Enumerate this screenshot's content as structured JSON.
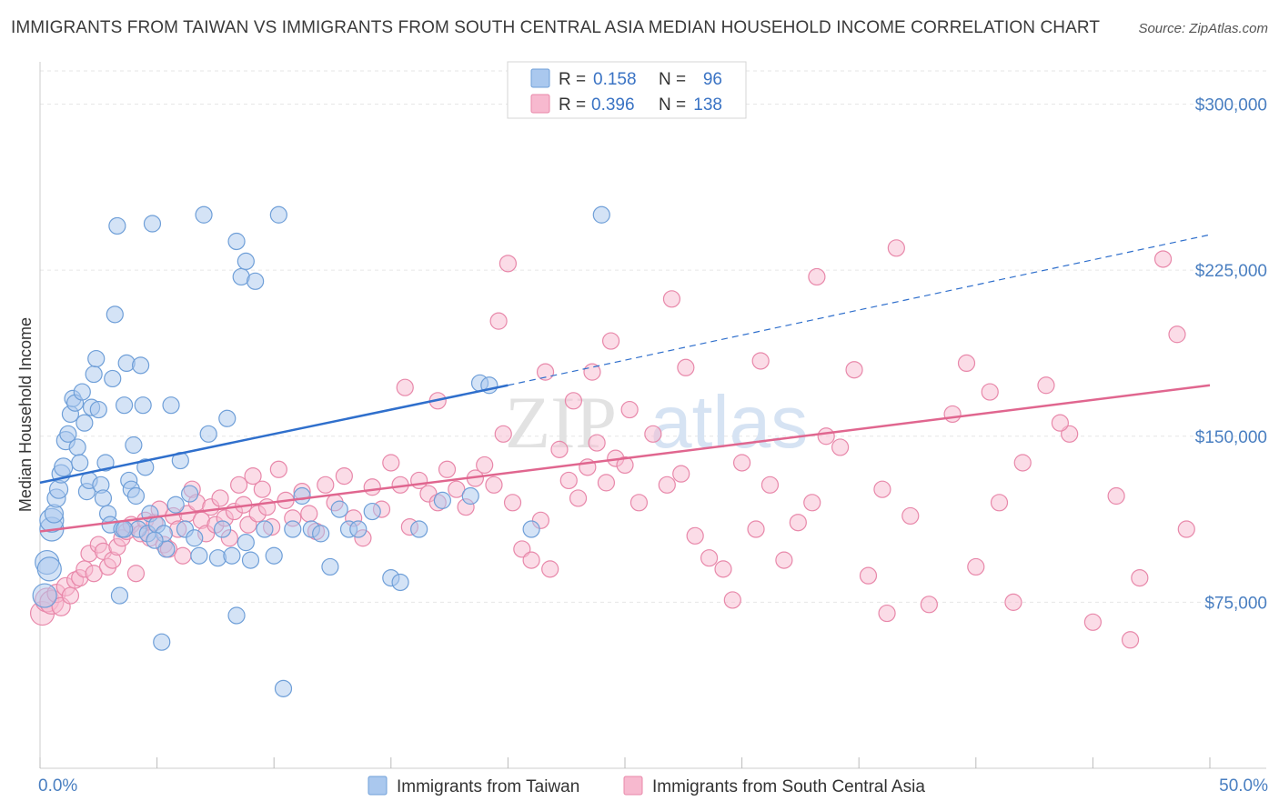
{
  "title": "IMMIGRANTS FROM TAIWAN VS IMMIGRANTS FROM SOUTH CENTRAL ASIA MEDIAN HOUSEHOLD INCOME CORRELATION CHART",
  "source": "Source: ZipAtlas.com",
  "watermark": {
    "zip": "ZIP",
    "atlas": "atlas"
  },
  "colors": {
    "taiwan_fill": "#aac8ee",
    "taiwan_stroke": "#6f9fd8",
    "taiwan_line": "#2f6fcc",
    "sca_fill": "#f7b9cf",
    "sca_stroke": "#e888aa",
    "sca_line": "#e0668f",
    "grid": "#e6e6e6",
    "tick": "#4a7fc1"
  },
  "legend": {
    "rows": [
      {
        "r_label": "R =",
        "r_value": "0.158",
        "n_label": "N =",
        "n_value": "96"
      },
      {
        "r_label": "R =",
        "r_value": "0.396",
        "n_label": "N =",
        "n_value": "138"
      }
    ]
  },
  "chart_data": {
    "type": "scatter",
    "title": "IMMIGRANTS FROM TAIWAN VS IMMIGRANTS FROM SOUTH CENTRAL ASIA MEDIAN HOUSEHOLD INCOME CORRELATION CHART",
    "xlabel": "",
    "ylabel": "Median Household Income",
    "xlim": [
      0,
      50
    ],
    "ylim": [
      0,
      315000
    ],
    "x_tick_labels": [
      "0.0%",
      "50.0%"
    ],
    "y_ticks": [
      75000,
      150000,
      225000,
      300000
    ],
    "y_tick_labels": [
      "$75,000",
      "$150,000",
      "$225,000",
      "$300,000"
    ],
    "grid": true,
    "legend_position": "bottom",
    "series": [
      {
        "name": "Immigrants from Taiwan",
        "R": 0.158,
        "N": 96,
        "trend": {
          "x": [
            0,
            20
          ],
          "y": [
            129000,
            173000
          ],
          "extend_to_x": 50,
          "extend_to_y": 241000
        },
        "points": [
          [
            0.2,
            78000
          ],
          [
            0.3,
            93000
          ],
          [
            0.4,
            90000
          ],
          [
            0.5,
            108000
          ],
          [
            0.5,
            112000
          ],
          [
            0.6,
            115000
          ],
          [
            0.7,
            122000
          ],
          [
            0.8,
            126000
          ],
          [
            0.9,
            133000
          ],
          [
            1.0,
            136000
          ],
          [
            1.1,
            148000
          ],
          [
            1.2,
            151000
          ],
          [
            1.3,
            160000
          ],
          [
            1.4,
            167000
          ],
          [
            1.5,
            165000
          ],
          [
            1.6,
            145000
          ],
          [
            1.7,
            138000
          ],
          [
            1.8,
            170000
          ],
          [
            1.9,
            156000
          ],
          [
            2.0,
            125000
          ],
          [
            2.1,
            130000
          ],
          [
            2.2,
            163000
          ],
          [
            2.3,
            178000
          ],
          [
            2.4,
            185000
          ],
          [
            2.5,
            162000
          ],
          [
            2.6,
            128000
          ],
          [
            2.7,
            122000
          ],
          [
            2.8,
            138000
          ],
          [
            2.9,
            115000
          ],
          [
            3.0,
            110000
          ],
          [
            3.1,
            176000
          ],
          [
            3.2,
            205000
          ],
          [
            3.3,
            245000
          ],
          [
            3.4,
            78000
          ],
          [
            3.5,
            108000
          ],
          [
            3.6,
            164000
          ],
          [
            3.7,
            183000
          ],
          [
            3.8,
            130000
          ],
          [
            3.9,
            126000
          ],
          [
            4.0,
            146000
          ],
          [
            4.1,
            123000
          ],
          [
            4.2,
            108000
          ],
          [
            4.3,
            182000
          ],
          [
            4.4,
            164000
          ],
          [
            4.5,
            136000
          ],
          [
            4.6,
            106000
          ],
          [
            4.7,
            115000
          ],
          [
            4.8,
            246000
          ],
          [
            5.0,
            110000
          ],
          [
            5.2,
            57000
          ],
          [
            5.4,
            99000
          ],
          [
            5.6,
            164000
          ],
          [
            5.8,
            119000
          ],
          [
            6.0,
            139000
          ],
          [
            6.2,
            108000
          ],
          [
            6.4,
            124000
          ],
          [
            6.6,
            104000
          ],
          [
            7.0,
            250000
          ],
          [
            7.2,
            151000
          ],
          [
            7.6,
            95000
          ],
          [
            7.8,
            108000
          ],
          [
            8.0,
            158000
          ],
          [
            8.2,
            96000
          ],
          [
            8.4,
            238000
          ],
          [
            8.6,
            222000
          ],
          [
            8.8,
            229000
          ],
          [
            8.4,
            69000
          ],
          [
            8.8,
            102000
          ],
          [
            9.0,
            94000
          ],
          [
            9.2,
            220000
          ],
          [
            9.6,
            108000
          ],
          [
            10.0,
            96000
          ],
          [
            10.2,
            250000
          ],
          [
            10.4,
            36000
          ],
          [
            10.8,
            108000
          ],
          [
            11.2,
            123000
          ],
          [
            11.6,
            108000
          ],
          [
            12.0,
            106000
          ],
          [
            12.4,
            91000
          ],
          [
            12.8,
            117000
          ],
          [
            13.2,
            108000
          ],
          [
            14.2,
            116000
          ],
          [
            15.0,
            86000
          ],
          [
            15.4,
            84000
          ],
          [
            16.2,
            108000
          ],
          [
            18.4,
            123000
          ],
          [
            18.8,
            174000
          ],
          [
            19.2,
            173000
          ],
          [
            17.2,
            121000
          ],
          [
            21.0,
            108000
          ],
          [
            13.6,
            108000
          ],
          [
            24.0,
            250000
          ],
          [
            6.8,
            96000
          ],
          [
            5.3,
            106000
          ],
          [
            4.9,
            103000
          ],
          [
            3.6,
            108000
          ]
        ]
      },
      {
        "name": "Immigrants from South Central Asia",
        "R": 0.396,
        "N": 138,
        "trend": {
          "x": [
            0,
            50
          ],
          "y": [
            107000,
            173000
          ]
        },
        "points": [
          [
            0.1,
            70000
          ],
          [
            0.3,
            76000
          ],
          [
            0.5,
            75000
          ],
          [
            0.7,
            79000
          ],
          [
            0.9,
            73000
          ],
          [
            1.1,
            82000
          ],
          [
            1.3,
            78000
          ],
          [
            1.5,
            85000
          ],
          [
            1.7,
            86000
          ],
          [
            1.9,
            90000
          ],
          [
            2.1,
            97000
          ],
          [
            2.3,
            88000
          ],
          [
            2.5,
            101000
          ],
          [
            2.7,
            98000
          ],
          [
            2.9,
            91000
          ],
          [
            3.1,
            94000
          ],
          [
            3.3,
            100000
          ],
          [
            3.5,
            104000
          ],
          [
            3.7,
            107000
          ],
          [
            3.9,
            110000
          ],
          [
            4.1,
            88000
          ],
          [
            4.3,
            106000
          ],
          [
            4.5,
            112000
          ],
          [
            4.7,
            104000
          ],
          [
            4.9,
            111000
          ],
          [
            5.1,
            117000
          ],
          [
            5.3,
            101000
          ],
          [
            5.5,
            99000
          ],
          [
            5.7,
            114000
          ],
          [
            5.9,
            108000
          ],
          [
            6.1,
            96000
          ],
          [
            6.3,
            115000
          ],
          [
            6.5,
            126000
          ],
          [
            6.7,
            120000
          ],
          [
            6.9,
            112000
          ],
          [
            7.1,
            106000
          ],
          [
            7.3,
            118000
          ],
          [
            7.5,
            110000
          ],
          [
            7.7,
            122000
          ],
          [
            7.9,
            113000
          ],
          [
            8.1,
            104000
          ],
          [
            8.3,
            116000
          ],
          [
            8.5,
            128000
          ],
          [
            8.7,
            119000
          ],
          [
            8.9,
            110000
          ],
          [
            9.1,
            132000
          ],
          [
            9.3,
            115000
          ],
          [
            9.5,
            126000
          ],
          [
            9.7,
            118000
          ],
          [
            9.9,
            109000
          ],
          [
            10.2,
            135000
          ],
          [
            10.5,
            121000
          ],
          [
            10.8,
            113000
          ],
          [
            11.2,
            125000
          ],
          [
            11.5,
            115000
          ],
          [
            11.8,
            107000
          ],
          [
            12.2,
            128000
          ],
          [
            12.6,
            120000
          ],
          [
            13.0,
            132000
          ],
          [
            13.4,
            113000
          ],
          [
            13.8,
            104000
          ],
          [
            14.2,
            127000
          ],
          [
            14.6,
            117000
          ],
          [
            15.0,
            138000
          ],
          [
            15.4,
            128000
          ],
          [
            15.8,
            109000
          ],
          [
            16.2,
            130000
          ],
          [
            16.6,
            124000
          ],
          [
            17.0,
            120000
          ],
          [
            17.4,
            135000
          ],
          [
            17.8,
            126000
          ],
          [
            18.2,
            118000
          ],
          [
            18.6,
            131000
          ],
          [
            19.0,
            137000
          ],
          [
            19.4,
            128000
          ],
          [
            19.8,
            151000
          ],
          [
            20.2,
            120000
          ],
          [
            20.6,
            99000
          ],
          [
            21.0,
            94000
          ],
          [
            21.4,
            112000
          ],
          [
            21.8,
            90000
          ],
          [
            22.2,
            144000
          ],
          [
            22.6,
            130000
          ],
          [
            23.0,
            122000
          ],
          [
            23.4,
            136000
          ],
          [
            23.8,
            147000
          ],
          [
            24.2,
            129000
          ],
          [
            24.6,
            140000
          ],
          [
            25.0,
            137000
          ],
          [
            25.6,
            120000
          ],
          [
            26.2,
            151000
          ],
          [
            26.8,
            128000
          ],
          [
            27.4,
            133000
          ],
          [
            28.0,
            105000
          ],
          [
            28.6,
            95000
          ],
          [
            29.2,
            90000
          ],
          [
            29.6,
            76000
          ],
          [
            30.0,
            138000
          ],
          [
            30.6,
            108000
          ],
          [
            31.2,
            128000
          ],
          [
            31.8,
            94000
          ],
          [
            32.4,
            111000
          ],
          [
            33.0,
            120000
          ],
          [
            33.6,
            150000
          ],
          [
            34.2,
            145000
          ],
          [
            34.8,
            180000
          ],
          [
            35.4,
            87000
          ],
          [
            36.0,
            126000
          ],
          [
            36.6,
            235000
          ],
          [
            37.2,
            114000
          ],
          [
            38.0,
            74000
          ],
          [
            39.0,
            160000
          ],
          [
            40.0,
            91000
          ],
          [
            41.0,
            120000
          ],
          [
            42.0,
            138000
          ],
          [
            43.0,
            173000
          ],
          [
            44.0,
            151000
          ],
          [
            45.0,
            66000
          ],
          [
            46.0,
            123000
          ],
          [
            47.0,
            86000
          ],
          [
            48.0,
            230000
          ],
          [
            49.0,
            108000
          ],
          [
            19.6,
            202000
          ],
          [
            21.6,
            179000
          ],
          [
            22.8,
            166000
          ],
          [
            24.4,
            193000
          ],
          [
            25.2,
            162000
          ],
          [
            27.6,
            181000
          ],
          [
            30.8,
            184000
          ],
          [
            33.2,
            222000
          ],
          [
            36.2,
            70000
          ],
          [
            39.6,
            183000
          ],
          [
            41.6,
            75000
          ],
          [
            43.6,
            156000
          ],
          [
            46.6,
            58000
          ],
          [
            48.6,
            196000
          ],
          [
            20.0,
            228000
          ],
          [
            17.0,
            166000
          ],
          [
            15.6,
            172000
          ],
          [
            23.6,
            179000
          ],
          [
            27.0,
            212000
          ],
          [
            40.6,
            170000
          ]
        ]
      }
    ]
  }
}
